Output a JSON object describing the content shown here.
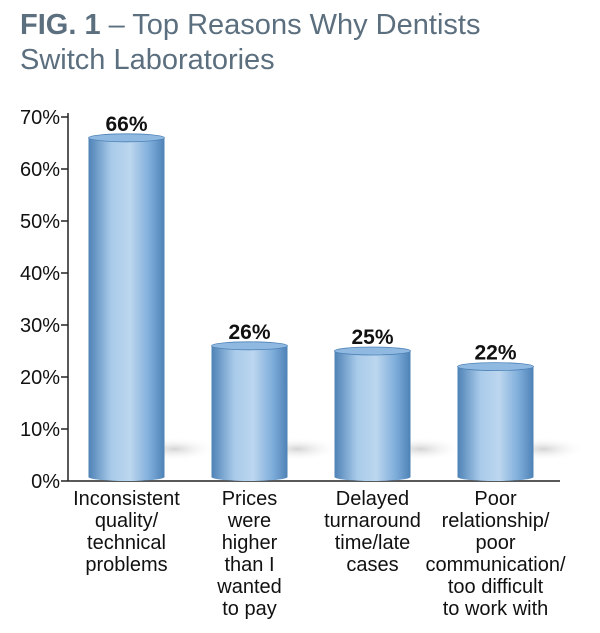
{
  "title": {
    "fig_label": "FIG. 1",
    "line1_rest": " – Top Reasons Why Dentists",
    "line2": "Switch Laboratories"
  },
  "colors": {
    "bar_light": "#bcd6ee",
    "bar_mid": "#7faedb",
    "bar_dark": "#4e82b6",
    "bar_top": "#8fb9e1",
    "shadow": "#d9d9d9",
    "axis": "#222222",
    "title": "#5c6f7f"
  },
  "chart_data": {
    "type": "bar",
    "title": "FIG. 1 – Top Reasons Why Dentists Switch Laboratories",
    "xlabel": "",
    "ylabel": "",
    "ylim": [
      0,
      70
    ],
    "yticks": [
      0,
      10,
      20,
      30,
      40,
      50,
      60,
      70
    ],
    "ytick_labels": [
      "0%",
      "10%",
      "20%",
      "30%",
      "40%",
      "50%",
      "60%",
      "70%"
    ],
    "categories": [
      [
        "Inconsistent",
        "quality/",
        "technical",
        "problems"
      ],
      [
        "Prices",
        "were",
        "higher",
        "than I",
        "wanted",
        "to pay"
      ],
      [
        "Delayed",
        "turnaround",
        "time/late",
        "cases"
      ],
      [
        "Poor",
        "relationship/",
        "poor",
        "communication/",
        "too difficult",
        "to work with"
      ]
    ],
    "values": [
      66,
      26,
      25,
      22
    ],
    "value_labels": [
      "66%",
      "26%",
      "25%",
      "22%"
    ],
    "grid": false,
    "legend": "none"
  }
}
